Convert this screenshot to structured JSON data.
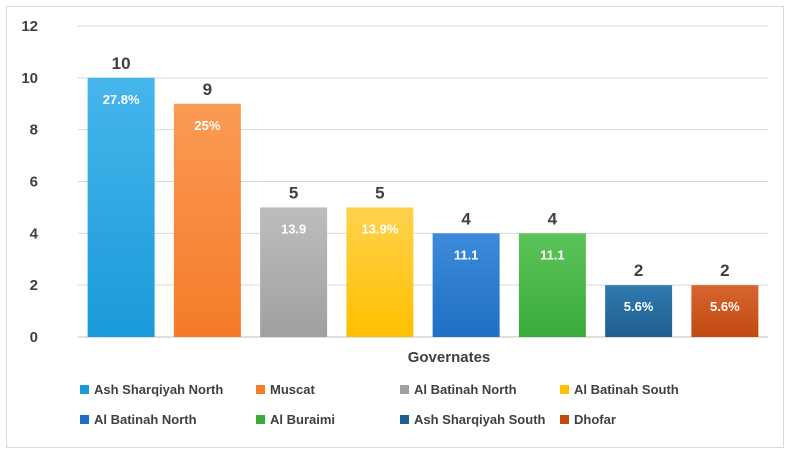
{
  "chart_data": {
    "type": "bar",
    "xlabel": "Governates",
    "ylabel": "",
    "ylim": [
      0,
      12
    ],
    "yticks": [
      0,
      2,
      4,
      6,
      8,
      10,
      12
    ],
    "grid": true,
    "legend_position": "bottom",
    "categories": [
      "Ash Sharqiyah North",
      "Muscat",
      "Al Batinah North",
      "Al Batinah South",
      "Al Batinah North",
      "Al Buraimi",
      "Ash Sharqiyah South",
      "Dhofar"
    ],
    "values": [
      10,
      9,
      5,
      5,
      4,
      4,
      2,
      2
    ],
    "value_labels": [
      "10",
      "9",
      "5",
      "5",
      "4",
      "4",
      "2",
      "2"
    ],
    "percent_labels": [
      "27.8%",
      "25%",
      "13.9",
      "13.9%",
      "11.1",
      "11.1",
      "5.6%",
      "5.6%"
    ],
    "colors": [
      "#1a9ad9",
      "#f47b28",
      "#a0a0a0",
      "#ffc000",
      "#1f6fc4",
      "#3aab3a",
      "#1f5f8f",
      "#c14a11"
    ],
    "colors_light": [
      "#46b6ec",
      "#fb9a55",
      "#bdbdbd",
      "#ffd24d",
      "#3d8ad9",
      "#5cc45a",
      "#2f7ab0",
      "#d8652f"
    ],
    "legend": [
      "Ash Sharqiyah North",
      "Muscat",
      "Al Batinah North",
      "Al Batinah South",
      "Al Batinah North",
      "Al Buraimi",
      "Ash Sharqiyah South",
      "Dhofar"
    ]
  }
}
